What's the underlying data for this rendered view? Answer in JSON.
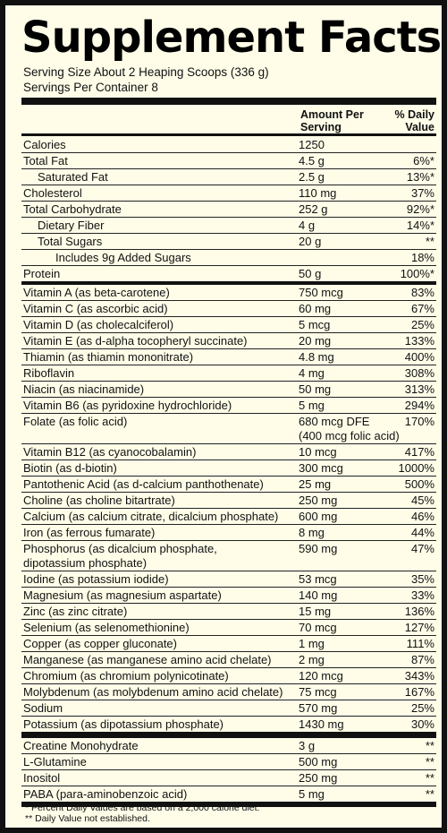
{
  "title": "Supplement Facts",
  "serving_size": "Serving Size About 2 Heaping Scoops (336 g)",
  "servings_per_container": "Servings Per Container 8",
  "header": {
    "amount": "Amount Per\nServing",
    "dv": "% Daily\nValue"
  },
  "nutrients": [
    {
      "name": "Calories",
      "amount": "1250",
      "dv": "",
      "indent": 0
    },
    {
      "name": "Total Fat",
      "amount": "4.5 g",
      "dv": "6%*",
      "indent": 0
    },
    {
      "name": "Saturated Fat",
      "amount": "2.5 g",
      "dv": "13%*",
      "indent": 1
    },
    {
      "name": "Cholesterol",
      "amount": "110 mg",
      "dv": "37%",
      "indent": 0
    },
    {
      "name": "Total Carbohydrate",
      "amount": "252 g",
      "dv": "92%*",
      "indent": 0
    },
    {
      "name": "Dietary Fiber",
      "amount": "4 g",
      "dv": "14%*",
      "indent": 1
    },
    {
      "name": "Total Sugars",
      "amount": "20 g",
      "dv": "**",
      "indent": 1
    },
    {
      "name": "Includes 9g Added Sugars",
      "amount": "",
      "dv": "18%",
      "indent": 2
    },
    {
      "name": "Protein",
      "amount": "50 g",
      "dv": "100%*",
      "indent": 0,
      "rule": "thick"
    },
    {
      "name": "Vitamin A (as beta-carotene)",
      "amount": "750 mcg",
      "dv": "83%",
      "indent": 0
    },
    {
      "name": "Vitamin C (as ascorbic acid)",
      "amount": "60 mg",
      "dv": "67%",
      "indent": 0
    },
    {
      "name": "Vitamin D (as cholecalciferol)",
      "amount": "5 mcg",
      "dv": "25%",
      "indent": 0
    },
    {
      "name": "Vitamin E (as d-alpha tocopheryl succinate)",
      "amount": "20 mg",
      "dv": "133%",
      "indent": 0
    },
    {
      "name": "Thiamin (as thiamin mononitrate)",
      "amount": "4.8 mg",
      "dv": "400%",
      "indent": 0
    },
    {
      "name": "Riboflavin",
      "amount": "4 mg",
      "dv": "308%",
      "indent": 0
    },
    {
      "name": "Niacin (as niacinamide)",
      "amount": "50 mg",
      "dv": "313%",
      "indent": 0
    },
    {
      "name": "Vitamin B6 (as pyridoxine hydrochloride)",
      "amount": "5 mg",
      "dv": "294%",
      "indent": 0
    },
    {
      "name": "Folate (as folic acid)",
      "amount": "680 mcg DFE\n(400 mcg folic acid)",
      "dv": "170%",
      "indent": 0,
      "tall": true
    },
    {
      "name": "Vitamin B12 (as cyanocobalamin)",
      "amount": "10 mcg",
      "dv": "417%",
      "indent": 0
    },
    {
      "name": "Biotin (as d-biotin)",
      "amount": "300 mcg",
      "dv": "1000%",
      "indent": 0
    },
    {
      "name": "Pantothenic Acid (as d-calcium panthothenate)",
      "amount": "25 mg",
      "dv": "500%",
      "indent": 0
    },
    {
      "name": "Choline (as choline bitartrate)",
      "amount": "250 mg",
      "dv": "45%",
      "indent": 0
    },
    {
      "name": "Calcium (as calcium citrate, dicalcium phosphate)",
      "amount": "600 mg",
      "dv": "46%",
      "indent": 0
    },
    {
      "name": "Iron (as ferrous fumarate)",
      "amount": "8 mg",
      "dv": "44%",
      "indent": 0
    },
    {
      "name": "Phosphorus (as dicalcium phosphate,\ndipotassium phosphate)",
      "amount": "590 mg",
      "dv": "47%",
      "indent": 0,
      "tall": true
    },
    {
      "name": "Iodine (as potassium iodide)",
      "amount": "53 mcg",
      "dv": "35%",
      "indent": 0
    },
    {
      "name": "Magnesium (as magnesium aspartate)",
      "amount": "140 mg",
      "dv": "33%",
      "indent": 0
    },
    {
      "name": "Zinc (as zinc citrate)",
      "amount": "15 mg",
      "dv": "136%",
      "indent": 0
    },
    {
      "name": "Selenium (as selenomethionine)",
      "amount": "70 mcg",
      "dv": "127%",
      "indent": 0
    },
    {
      "name": "Copper (as copper gluconate)",
      "amount": "1 mg",
      "dv": "111%",
      "indent": 0
    },
    {
      "name": "Manganese (as manganese amino acid chelate)",
      "amount": "2 mg",
      "dv": "87%",
      "indent": 0
    },
    {
      "name": "Chromium (as chromium polynicotinate)",
      "amount": "120 mcg",
      "dv": "343%",
      "indent": 0
    },
    {
      "name": "Molybdenum (as molybdenum amino acid chelate)",
      "amount": "75 mcg",
      "dv": "167%",
      "indent": 0
    },
    {
      "name": "Sodium",
      "amount": "570 mg",
      "dv": "25%",
      "indent": 0
    },
    {
      "name": "Potassium (as dipotassium phosphate)",
      "amount": "1430 mg",
      "dv": "30%",
      "indent": 0,
      "rule": "sep"
    },
    {
      "name": "Creatine Monohydrate",
      "amount": "3 g",
      "dv": "**",
      "indent": 0
    },
    {
      "name": "L-Glutamine",
      "amount": "500 mg",
      "dv": "**",
      "indent": 0
    },
    {
      "name": "Inositol",
      "amount": "250 mg",
      "dv": "**",
      "indent": 0
    },
    {
      "name": "PABA (para-aminobenzoic acid)",
      "amount": "5 mg",
      "dv": "**",
      "indent": 0,
      "rule": "last"
    }
  ],
  "footnotes": [
    "* Percent Daily Values are based on a 2,000 calorie diet.",
    "** Daily Value not established."
  ]
}
